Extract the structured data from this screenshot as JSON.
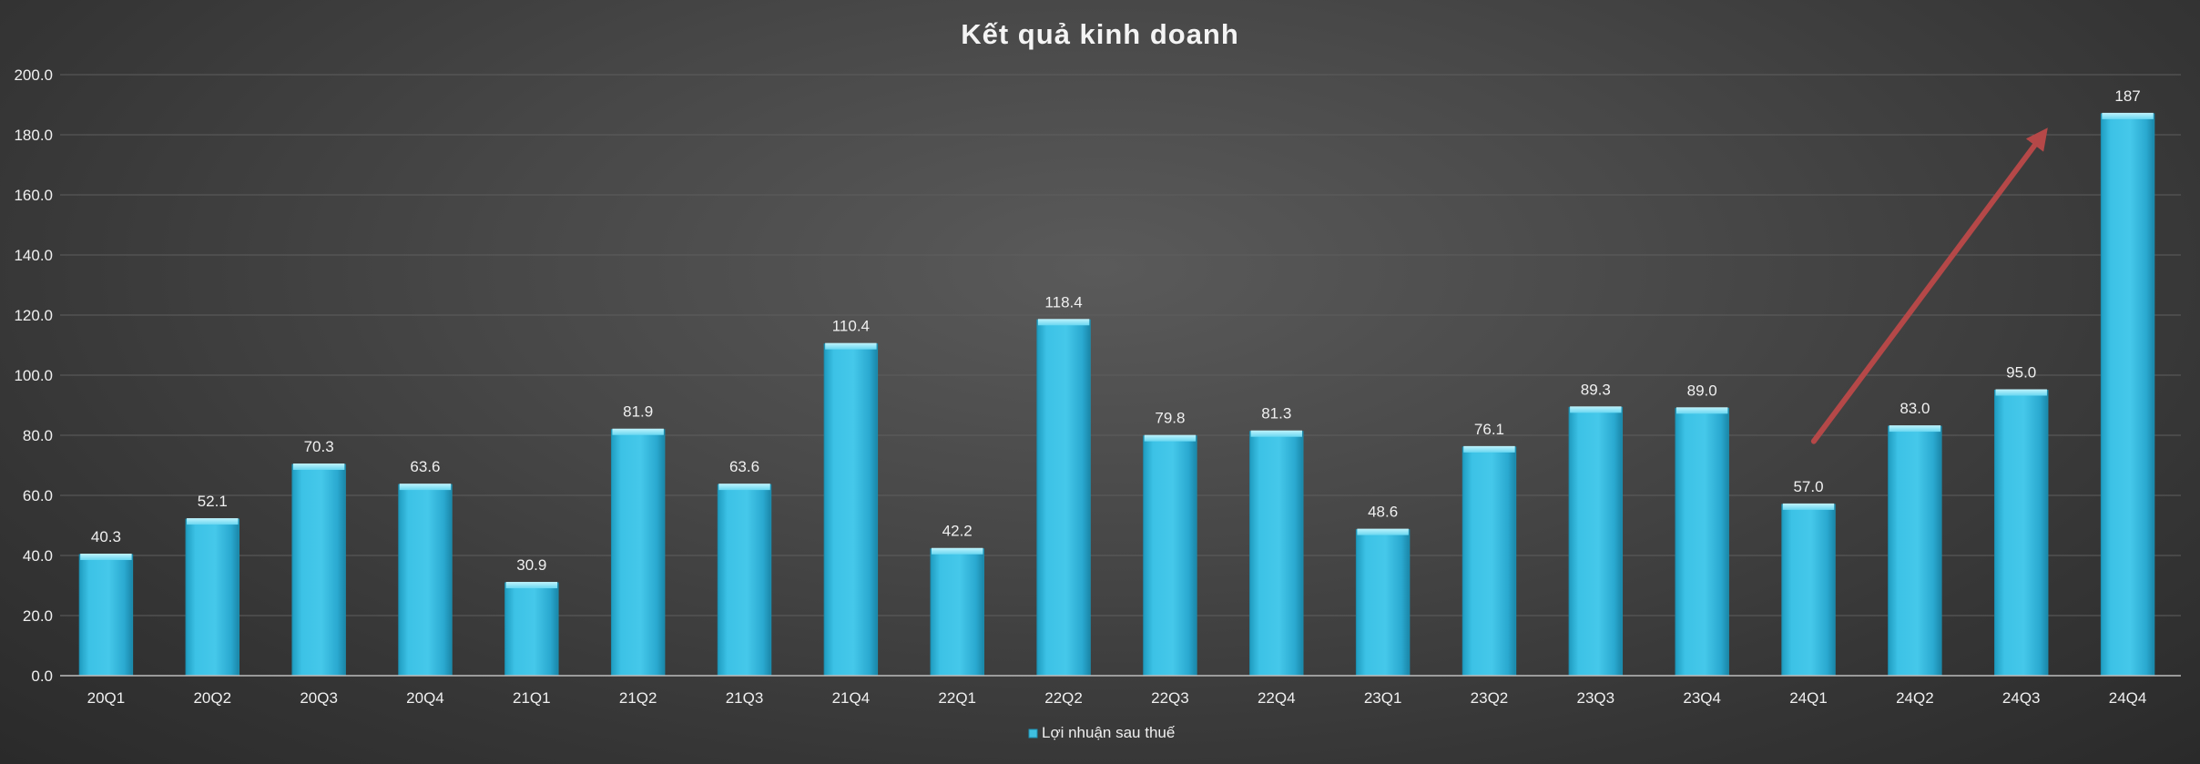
{
  "chart_data": {
    "type": "bar",
    "title": "Kết quả kinh doanh",
    "xlabel": "",
    "ylabel": "",
    "ylim": [
      0,
      200
    ],
    "yticks": [
      "0.0",
      "20.0",
      "40.0",
      "60.0",
      "80.0",
      "100.0",
      "120.0",
      "140.0",
      "160.0",
      "180.0",
      "200.0"
    ],
    "grid": true,
    "legend_position": "bottom",
    "categories": [
      "20Q1",
      "20Q2",
      "20Q3",
      "20Q4",
      "21Q1",
      "21Q2",
      "21Q3",
      "21Q4",
      "22Q1",
      "22Q2",
      "22Q3",
      "22Q4",
      "23Q1",
      "23Q2",
      "23Q3",
      "23Q4",
      "24Q1",
      "24Q2",
      "24Q3",
      "24Q4"
    ],
    "series": [
      {
        "name": "Lợi nhuận sau thuế",
        "values": [
          40.3,
          52.1,
          70.3,
          63.6,
          30.9,
          81.9,
          63.6,
          110.4,
          42.2,
          118.4,
          79.8,
          81.3,
          48.6,
          76.1,
          89.3,
          89.0,
          57.0,
          83.0,
          95.0,
          187
        ],
        "labels": [
          "40.3",
          "52.1",
          "70.3",
          "63.6",
          "30.9",
          "81.9",
          "63.6",
          "110.4",
          "42.2",
          "118.4",
          "79.8",
          "81.3",
          "48.6",
          "76.1",
          "89.3",
          "89.0",
          "57.0",
          "83.0",
          "95.0",
          "187"
        ]
      }
    ],
    "annotation": {
      "type": "trend-arrow",
      "from_category": "24Q1",
      "to_category": "24Q3",
      "from_value": 78,
      "to_value": 180
    },
    "colors": {
      "bar": "#3fbfe0",
      "bar_top": "#8fe6f7",
      "bar_edge": "#1d8fb0",
      "text": "#f0f0f0",
      "grid": "#5e5e5e",
      "arrow": "#b54848"
    }
  }
}
